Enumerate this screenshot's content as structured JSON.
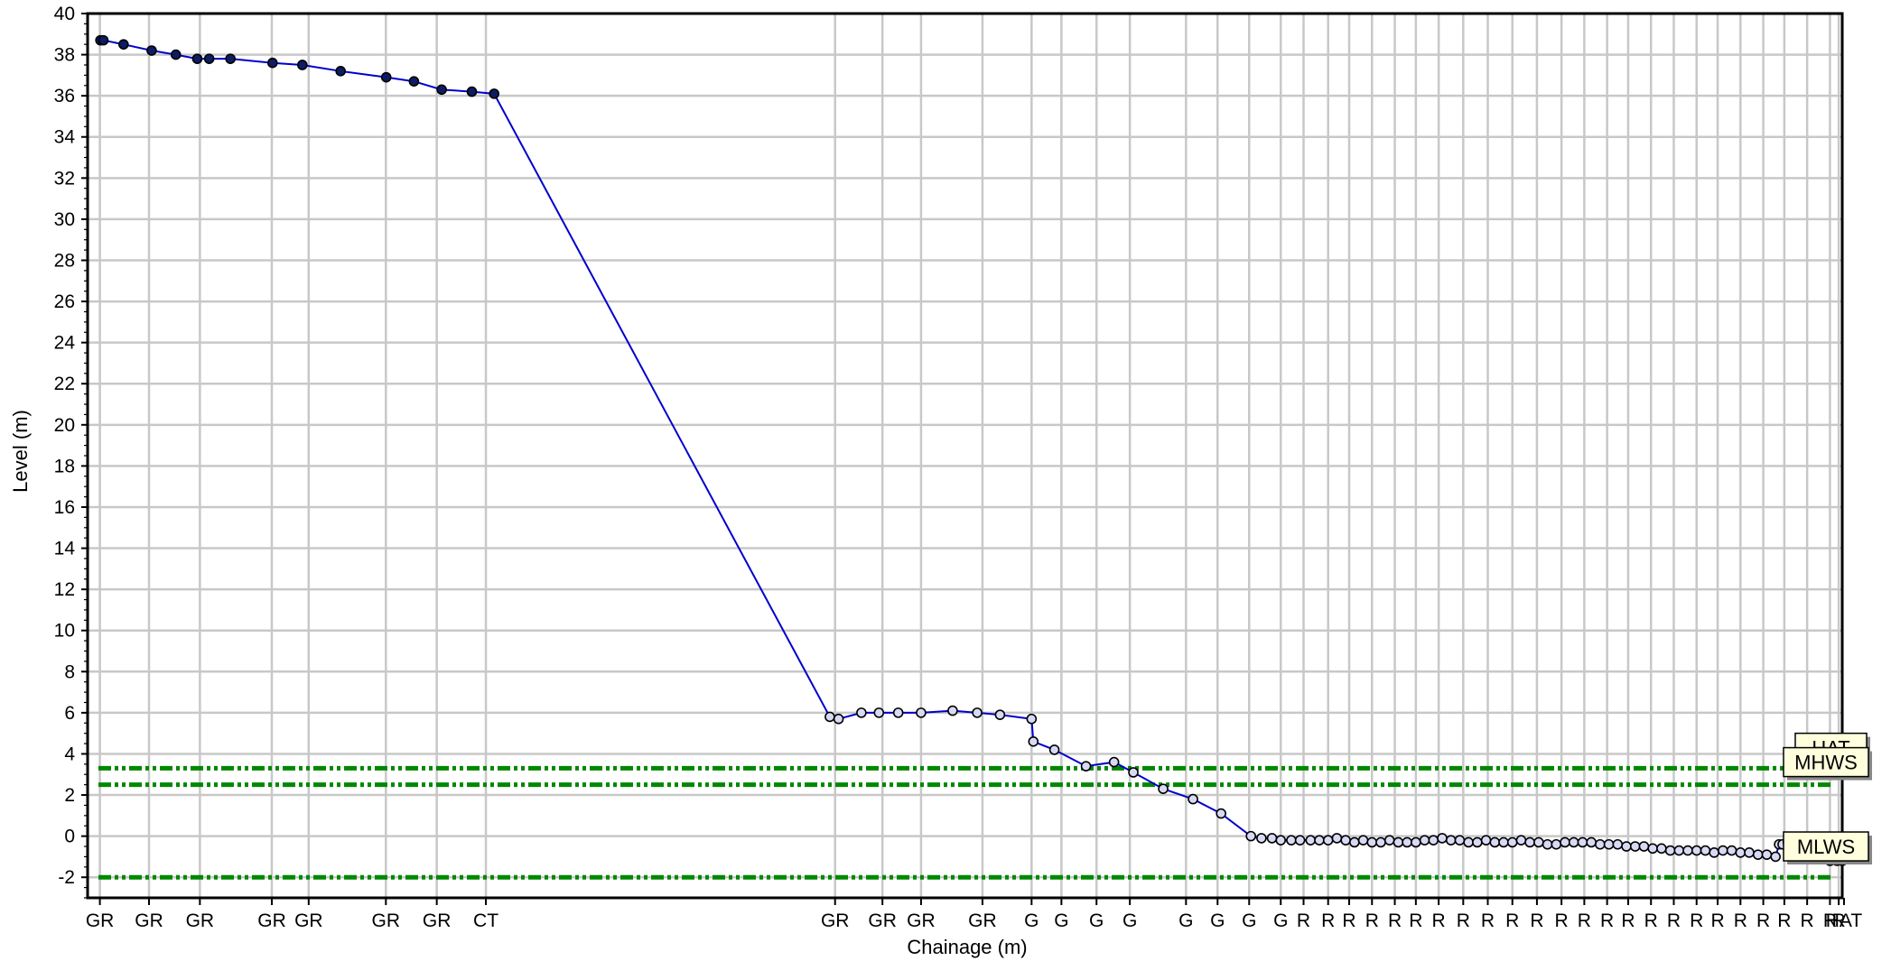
{
  "chart_data": {
    "type": "line",
    "xlabel": "Chainage (m)",
    "ylabel": "Level (m)",
    "ylim": [
      -3,
      40
    ],
    "xlim": [
      0,
      1000
    ],
    "y_ticks": [
      -2,
      0,
      2,
      4,
      6,
      8,
      10,
      12,
      14,
      16,
      18,
      20,
      22,
      24,
      26,
      28,
      30,
      32,
      34,
      36,
      38,
      40
    ],
    "grid": true,
    "series": [
      {
        "color": "#0000cc",
        "marker_fill": "#0d1d63",
        "points": [
          [
            7.3,
            38.7
          ],
          [
            9.0,
            38.7
          ],
          [
            20.5,
            38.5
          ],
          [
            36.5,
            38.2
          ],
          [
            50.3,
            38.0
          ],
          [
            62.5,
            37.8
          ],
          [
            69.3,
            37.8
          ],
          [
            81.4,
            37.8
          ],
          [
            105.4,
            37.6
          ],
          [
            122.4,
            37.5
          ],
          [
            144.2,
            37.2
          ],
          [
            170.2,
            36.9
          ],
          [
            186.0,
            36.7
          ],
          [
            201.8,
            36.3
          ],
          [
            219.0,
            36.2
          ],
          [
            231.7,
            36.1
          ]
        ]
      },
      {
        "color": "#0000cc",
        "marker_fill": "#d8daf5",
        "points": [
          [
            423,
            5.8
          ],
          [
            428,
            5.7
          ],
          [
            441,
            6.0
          ],
          [
            451,
            6.0
          ],
          [
            462,
            6.0
          ],
          [
            475,
            6.0
          ],
          [
            493,
            6.1
          ],
          [
            507,
            6.0
          ],
          [
            520,
            5.9
          ],
          [
            538,
            5.7
          ],
          [
            539,
            4.6
          ],
          [
            551,
            4.2
          ],
          [
            569,
            3.4
          ],
          [
            585,
            3.6
          ],
          [
            596,
            3.1
          ],
          [
            613,
            2.3
          ],
          [
            630,
            1.8
          ],
          [
            646,
            1.1
          ],
          [
            663,
            0.0
          ],
          [
            669,
            -0.1
          ],
          [
            675,
            -0.1
          ],
          [
            680,
            -0.2
          ],
          [
            686,
            -0.2
          ],
          [
            691,
            -0.2
          ],
          [
            697,
            -0.2
          ],
          [
            702,
            -0.2
          ],
          [
            707,
            -0.2
          ],
          [
            712,
            -0.1
          ],
          [
            717,
            -0.2
          ],
          [
            722,
            -0.3
          ],
          [
            727,
            -0.2
          ],
          [
            732,
            -0.3
          ],
          [
            737,
            -0.3
          ],
          [
            742,
            -0.2
          ],
          [
            747,
            -0.3
          ],
          [
            752,
            -0.3
          ],
          [
            757,
            -0.3
          ],
          [
            762,
            -0.2
          ],
          [
            767,
            -0.2
          ],
          [
            772,
            -0.1
          ],
          [
            777,
            -0.2
          ],
          [
            782,
            -0.2
          ],
          [
            787,
            -0.3
          ],
          [
            792,
            -0.3
          ],
          [
            797,
            -0.2
          ],
          [
            802,
            -0.3
          ],
          [
            807,
            -0.3
          ],
          [
            812,
            -0.3
          ],
          [
            817,
            -0.2
          ],
          [
            822,
            -0.3
          ],
          [
            827,
            -0.3
          ],
          [
            832,
            -0.4
          ],
          [
            837,
            -0.4
          ],
          [
            842,
            -0.3
          ],
          [
            847,
            -0.3
          ],
          [
            852,
            -0.3
          ],
          [
            857,
            -0.3
          ],
          [
            862,
            -0.4
          ],
          [
            867,
            -0.4
          ],
          [
            872,
            -0.4
          ],
          [
            877,
            -0.5
          ],
          [
            882,
            -0.5
          ],
          [
            887,
            -0.5
          ],
          [
            892,
            -0.6
          ],
          [
            897,
            -0.6
          ],
          [
            902,
            -0.7
          ],
          [
            907,
            -0.7
          ],
          [
            912,
            -0.7
          ],
          [
            917,
            -0.7
          ],
          [
            922,
            -0.7
          ],
          [
            927,
            -0.8
          ],
          [
            932,
            -0.7
          ],
          [
            937,
            -0.7
          ],
          [
            942,
            -0.8
          ],
          [
            947,
            -0.8
          ],
          [
            952,
            -0.9
          ],
          [
            957,
            -0.9
          ],
          [
            962,
            -1.0
          ],
          [
            964,
            -0.4
          ],
          [
            966,
            -0.4
          ],
          [
            969,
            -0.3
          ],
          [
            971,
            -0.4
          ],
          [
            975,
            -0.9
          ],
          [
            979,
            -0.9
          ],
          [
            983,
            -0.9
          ],
          [
            987,
            -1.0
          ],
          [
            990,
            -1.0
          ],
          [
            993,
            -1.2
          ],
          [
            997,
            -1.2
          ],
          [
            1000,
            -1.2
          ]
        ]
      }
    ],
    "series_markers": [
      "filled",
      "open"
    ],
    "reference_lines": [
      {
        "label": "HAT",
        "y": 3.3,
        "color": "#008800"
      },
      {
        "label": "MHWS",
        "y": 2.5,
        "color": "#008800"
      },
      {
        "label": "MLWS",
        "y": -2.0,
        "color": "#008800"
      }
    ],
    "x_code_labels": [
      {
        "x": 7,
        "text": "GR"
      },
      {
        "x": 35,
        "text": "GR"
      },
      {
        "x": 64,
        "text": "GR"
      },
      {
        "x": 105,
        "text": "GR"
      },
      {
        "x": 126,
        "text": "GR"
      },
      {
        "x": 170,
        "text": "GR"
      },
      {
        "x": 199,
        "text": "GR"
      },
      {
        "x": 227,
        "text": "CT"
      },
      {
        "x": 426,
        "text": "GR"
      },
      {
        "x": 453,
        "text": "GR"
      },
      {
        "x": 475,
        "text": "GR"
      },
      {
        "x": 510,
        "text": "GR"
      },
      {
        "x": 538,
        "text": "G"
      },
      {
        "x": 555,
        "text": "G"
      },
      {
        "x": 575,
        "text": "G"
      },
      {
        "x": 594,
        "text": "G"
      },
      {
        "x": 626,
        "text": "G"
      },
      {
        "x": 644,
        "text": "G"
      },
      {
        "x": 662,
        "text": "G"
      },
      {
        "x": 680,
        "text": "G"
      },
      {
        "x": 693,
        "text": "R"
      },
      {
        "x": 707,
        "text": "R"
      },
      {
        "x": 719,
        "text": "R"
      },
      {
        "x": 732,
        "text": "R"
      },
      {
        "x": 745,
        "text": "R"
      },
      {
        "x": 757,
        "text": "R"
      },
      {
        "x": 770,
        "text": "R"
      },
      {
        "x": 784,
        "text": "R"
      },
      {
        "x": 798,
        "text": "R"
      },
      {
        "x": 812,
        "text": "R"
      },
      {
        "x": 826,
        "text": "R"
      },
      {
        "x": 840,
        "text": "R"
      },
      {
        "x": 853,
        "text": "R"
      },
      {
        "x": 866,
        "text": "R"
      },
      {
        "x": 878,
        "text": "R"
      },
      {
        "x": 891,
        "text": "R"
      },
      {
        "x": 904,
        "text": "R"
      },
      {
        "x": 917,
        "text": "R"
      },
      {
        "x": 929,
        "text": "R"
      },
      {
        "x": 942,
        "text": "R"
      },
      {
        "x": 955,
        "text": "R"
      },
      {
        "x": 967,
        "text": "R"
      },
      {
        "x": 980,
        "text": "R"
      },
      {
        "x": 993,
        "text": "R"
      },
      {
        "x": 998,
        "text": "R"
      },
      {
        "x": 1001,
        "text": "HAT"
      }
    ]
  }
}
